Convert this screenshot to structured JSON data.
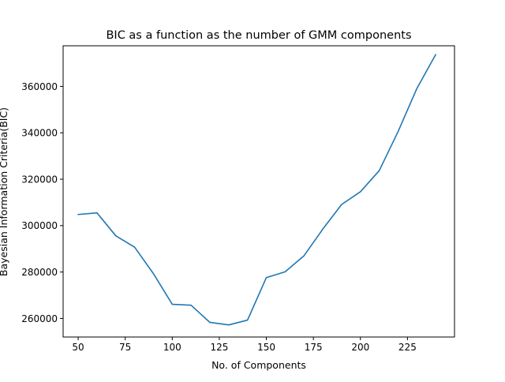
{
  "chart_data": {
    "type": "line",
    "title": "BIC as a function as the number of GMM components",
    "xlabel": "No. of Components",
    "ylabel": "Bayesian Information Criteria(BIC)",
    "xlim": [
      42,
      250
    ],
    "ylim": [
      252000,
      377500
    ],
    "xticks": [
      50,
      75,
      100,
      125,
      150,
      175,
      200,
      225
    ],
    "yticks": [
      260000,
      280000,
      300000,
      320000,
      340000,
      360000
    ],
    "grid": false,
    "series": [
      {
        "color": "#1f77b4",
        "x": [
          50,
          60,
          70,
          80,
          90,
          100,
          110,
          120,
          130,
          140,
          150,
          160,
          170,
          180,
          190,
          200,
          210,
          220,
          230,
          240
        ],
        "y": [
          304800,
          305500,
          295600,
          290700,
          279300,
          266100,
          265700,
          258300,
          257200,
          259300,
          277600,
          280100,
          287000,
          298500,
          309100,
          314600,
          323700,
          340500,
          359100,
          373700
        ]
      }
    ]
  }
}
